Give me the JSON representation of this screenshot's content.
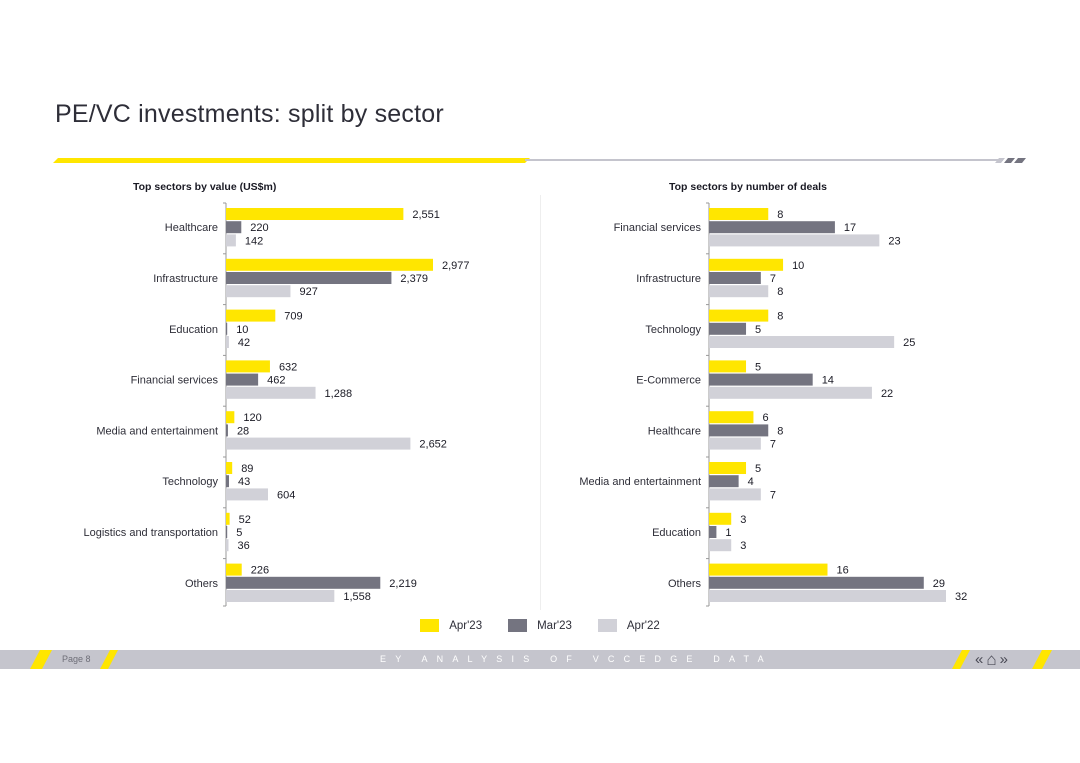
{
  "page": {
    "title": "PE/VC investments: split by sector"
  },
  "colors": {
    "apr23": "#ffe600",
    "mar23": "#747480",
    "apr22": "#d1d1d8",
    "axis": "#999999",
    "rule_gray": "#c4c4cd",
    "footer_bar": "#c5c5cd"
  },
  "legend": {
    "items": [
      {
        "label": "Apr'23",
        "color": "#ffe600"
      },
      {
        "label": "Mar'23",
        "color": "#747480"
      },
      {
        "label": "Apr'22",
        "color": "#d1d1d8"
      }
    ]
  },
  "chart_data": [
    {
      "type": "bar",
      "orientation": "horizontal",
      "title": "Top sectors by value (US$m)",
      "categories": [
        "Healthcare",
        "Infrastructure",
        "Education",
        "Financial services",
        "Media and entertainment",
        "Technology",
        "Logistics and transportation",
        "Others"
      ],
      "series": [
        {
          "name": "Apr'23",
          "values": [
            2551,
            2977,
            709,
            632,
            120,
            89,
            52,
            226
          ],
          "labels": [
            "2,551",
            "2,977",
            "709",
            "632",
            "120",
            "89",
            "52",
            "226"
          ]
        },
        {
          "name": "Mar'23",
          "values": [
            220,
            2379,
            10,
            462,
            28,
            43,
            5,
            2219
          ],
          "labels": [
            "220",
            "2,379",
            "10",
            "462",
            "28",
            "43",
            "5",
            "2,219"
          ]
        },
        {
          "name": "Apr'22",
          "values": [
            142,
            927,
            42,
            1288,
            2652,
            604,
            36,
            1558
          ],
          "labels": [
            "142",
            "927",
            "42",
            "1,288",
            "2,652",
            "604",
            "36",
            "1,558"
          ]
        }
      ],
      "xlim": [
        0,
        3200
      ],
      "grid": false,
      "legend": "bottom"
    },
    {
      "type": "bar",
      "orientation": "horizontal",
      "title": "Top sectors by number of deals",
      "categories": [
        "Financial services",
        "Infrastructure",
        "Technology",
        "E-Commerce",
        "Healthcare",
        "Media and entertainment",
        "Education",
        "Others"
      ],
      "series": [
        {
          "name": "Apr'23",
          "values": [
            8,
            10,
            8,
            5,
            6,
            5,
            3,
            16
          ],
          "labels": [
            "8",
            "10",
            "8",
            "5",
            "6",
            "5",
            "3",
            "16"
          ]
        },
        {
          "name": "Mar'23",
          "values": [
            17,
            7,
            5,
            14,
            8,
            4,
            1,
            29
          ],
          "labels": [
            "17",
            "7",
            "5",
            "14",
            "8",
            "4",
            "1",
            "29"
          ]
        },
        {
          "name": "Apr'22",
          "values": [
            23,
            8,
            25,
            22,
            7,
            7,
            3,
            32
          ],
          "labels": [
            "23",
            "8",
            "25",
            "22",
            "7",
            "7",
            "3",
            "32"
          ]
        }
      ],
      "xlim": [
        0,
        34
      ],
      "grid": false,
      "legend": "bottom"
    }
  ],
  "footer": {
    "page_label": "Page 8",
    "text": "EY ANALYSIS OF VCCEDGE DATA",
    "nav": [
      {
        "icon": "previous-icon",
        "symbol": "«"
      },
      {
        "icon": "home-icon",
        "symbol": "⌂"
      },
      {
        "icon": "next-icon",
        "symbol": "»"
      }
    ]
  }
}
